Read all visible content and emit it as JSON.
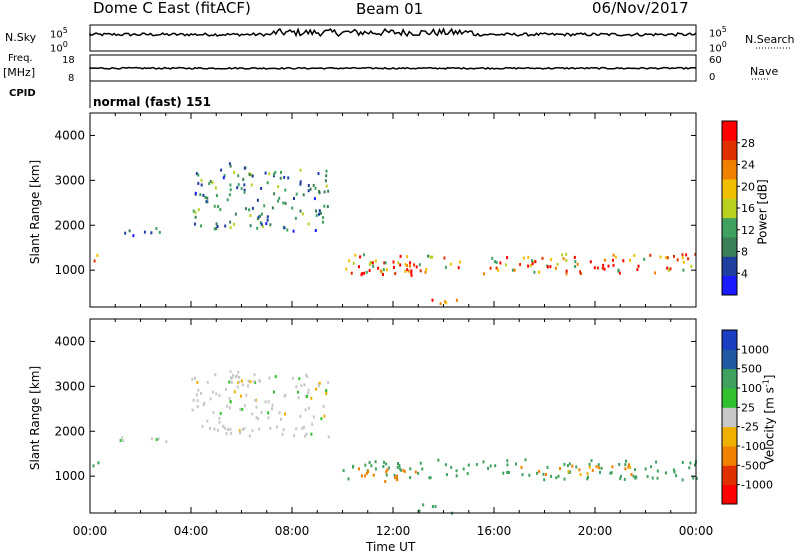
{
  "header": {
    "radar_title": "Dome C East (fitACF)",
    "beam": "Beam 01",
    "date": "06/Nov/2017"
  },
  "panels": {
    "nsky": {
      "label": "N.Sky",
      "top_tick": "10^5",
      "bottom_tick": "10^0"
    },
    "nsearch": {
      "label": "N.Search",
      "top_tick": "10^5",
      "bottom_tick": "10^0"
    },
    "freq": {
      "label": "Freq.",
      "unit": "[MHz]",
      "top_tick": "18",
      "bottom_tick": "8"
    },
    "nave": {
      "label": "Nave",
      "top_tick": "60",
      "bottom_tick": "0"
    },
    "cpid": {
      "label": "CPID",
      "value": "normal (fast) 151"
    }
  },
  "colors": {
    "power": [
      "#1a1aff",
      "#1f3fa0",
      "#3a7f55",
      "#3fa060",
      "#b8d020",
      "#f0c000",
      "#f08000",
      "#e03000",
      "#ff0000"
    ],
    "velocity": [
      "#ff0000",
      "#e03000",
      "#f08000",
      "#f0b000",
      "#c8c8c8",
      "#30c030",
      "#3fa060",
      "#205aa0",
      "#1a3fc0"
    ]
  },
  "chart_data": [
    {
      "type": "heatmap",
      "name": "power",
      "ylabel": "Slant Range [km]",
      "xlabel": "",
      "ylim": [
        180,
        4500
      ],
      "xlim": [
        0,
        24
      ],
      "yticks": [
        "1000",
        "2000",
        "3000",
        "4000"
      ],
      "xticks": [
        "00:00",
        "04:00",
        "08:00",
        "12:00",
        "16:00",
        "20:00",
        "00:00"
      ],
      "colorbar": {
        "label": "Power [dB]",
        "ticks": [
          "4",
          "8",
          "12",
          "16",
          "20",
          "24",
          "28"
        ]
      },
      "regions": [
        {
          "t": [
            0.0,
            0.4
          ],
          "r": [
            1150,
            1450
          ],
          "value": 16
        },
        {
          "t": [
            4.0,
            9.5
          ],
          "r": [
            1900,
            3300
          ],
          "value": 10
        },
        {
          "t": [
            5.5,
            6.5
          ],
          "r": [
            2800,
            3450
          ],
          "value": 8
        },
        {
          "t": [
            10.0,
            24.0
          ],
          "r": [
            950,
            1400
          ],
          "value": 22
        },
        {
          "t": [
            10.5,
            13.5
          ],
          "r": [
            900,
            1200
          ],
          "value": 26
        },
        {
          "t": [
            17.0,
            21.5
          ],
          "r": [
            1050,
            1300
          ],
          "value": 26
        },
        {
          "t": [
            13.0,
            14.5
          ],
          "r": [
            200,
            400
          ],
          "value": 20
        },
        {
          "t": [
            1.0,
            3.0
          ],
          "r": [
            1800,
            2000
          ],
          "value": 8
        }
      ]
    },
    {
      "type": "heatmap",
      "name": "velocity",
      "ylabel": "Slant Range [km]",
      "xlabel": "Time UT",
      "ylim": [
        180,
        4500
      ],
      "xlim": [
        0,
        24
      ],
      "yticks": [
        "1000",
        "2000",
        "3000",
        "4000"
      ],
      "xticks": [
        "00:00",
        "04:00",
        "08:00",
        "12:00",
        "16:00",
        "20:00",
        "00:00"
      ],
      "colorbar": {
        "label": "Velocity [m s^-1]",
        "ticks": [
          "1000",
          "500",
          "100",
          "25",
          "-25",
          "-100",
          "-500",
          "-1000"
        ]
      },
      "regions": [
        {
          "t": [
            0.0,
            0.4
          ],
          "r": [
            1150,
            1450
          ],
          "value": 150
        },
        {
          "t": [
            4.0,
            9.5
          ],
          "r": [
            1900,
            3300
          ],
          "value": 0
        },
        {
          "t": [
            5.5,
            6.5
          ],
          "r": [
            2800,
            3450
          ],
          "value": 0
        },
        {
          "t": [
            10.0,
            24.0
          ],
          "r": [
            950,
            1400
          ],
          "value": 120
        },
        {
          "t": [
            10.5,
            13.5
          ],
          "r": [
            900,
            1200
          ],
          "value": -150
        },
        {
          "t": [
            17.0,
            21.5
          ],
          "r": [
            1050,
            1300
          ],
          "value": -80
        },
        {
          "t": [
            13.0,
            14.5
          ],
          "r": [
            200,
            400
          ],
          "value": 80
        },
        {
          "t": [
            1.0,
            3.0
          ],
          "r": [
            1800,
            2000
          ],
          "value": 0
        }
      ]
    }
  ]
}
